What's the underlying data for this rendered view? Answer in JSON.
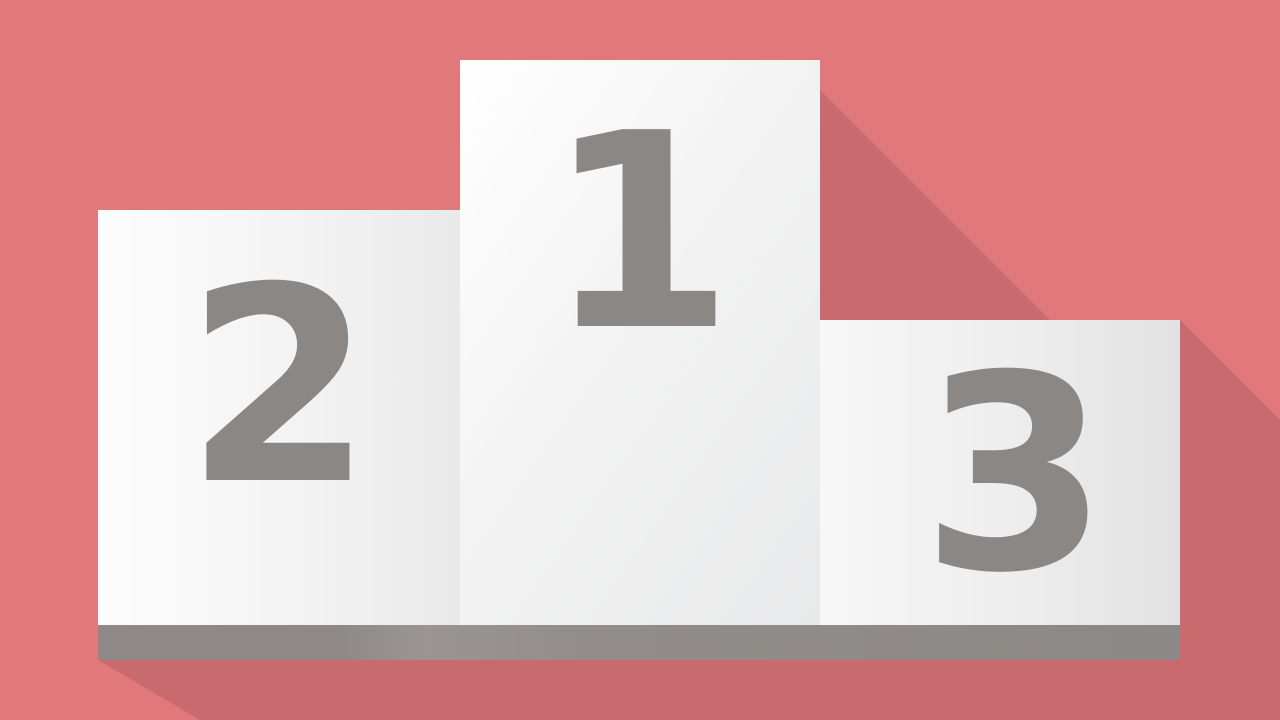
{
  "podium": {
    "first_place_label": "1",
    "second_place_label": "2",
    "third_place_label": "3"
  },
  "colors": {
    "background": "#e1787b",
    "shadow": "#c86a6e",
    "block_face": "#f2f2f2",
    "numeral": "#8b8785",
    "base": "#8e8986"
  }
}
